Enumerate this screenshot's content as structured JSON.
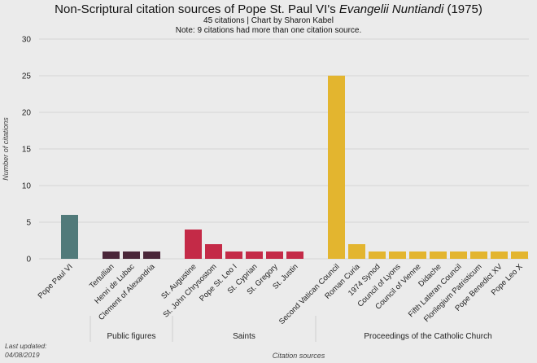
{
  "chart_data": {
    "type": "bar",
    "title_main": "Non-Scriptural citation sources of Pope St. Paul VI's ",
    "title_italic": "Evangelii Nuntiandi",
    "title_end": " (1975)",
    "subtitle_1": "45 citations | Chart by Sharon Kabel",
    "subtitle_2": "Note: 9 citations had more than one citation source.",
    "xlabel": "Citation sources",
    "ylabel": "Number of citations",
    "ylim": [
      0,
      30
    ],
    "yticks": [
      "0",
      "5",
      "10",
      "15",
      "20",
      "25",
      "30"
    ],
    "footnote_line1": "Last updated:",
    "footnote_line2": "04/08/2019",
    "groups": [
      {
        "name": "",
        "color": "#517a7a",
        "categories": [
          "Pope Paul VI"
        ],
        "values": [
          6
        ]
      },
      {
        "name": "Public figures",
        "color": "#4a2639",
        "categories": [
          "Tertullian",
          "Henri de Lubac",
          "Clement of Alexandria"
        ],
        "values": [
          1,
          1,
          1
        ]
      },
      {
        "name": "Saints",
        "color": "#c42a47",
        "categories": [
          "St. Augustine",
          "St. John Chrysostom",
          "Pope St. Leo I",
          "St. Cyprian",
          "St. Gregory",
          "St. Justin"
        ],
        "values": [
          4,
          2,
          1,
          1,
          1,
          1
        ]
      },
      {
        "name": "Proceedings of the Catholic Church",
        "color": "#e3b52f",
        "categories": [
          "Second Vatican Council",
          "Roman Curia",
          "1974 Synod",
          "Council of Lyons",
          "Council of Vienne",
          "Didache",
          "Fifth Lateran Council",
          "Florilegium Patristicum",
          "Pope Benedict XV",
          "Pope Leo X"
        ],
        "values": [
          25,
          2,
          1,
          1,
          1,
          1,
          1,
          1,
          1,
          1
        ]
      }
    ],
    "grid": true
  }
}
